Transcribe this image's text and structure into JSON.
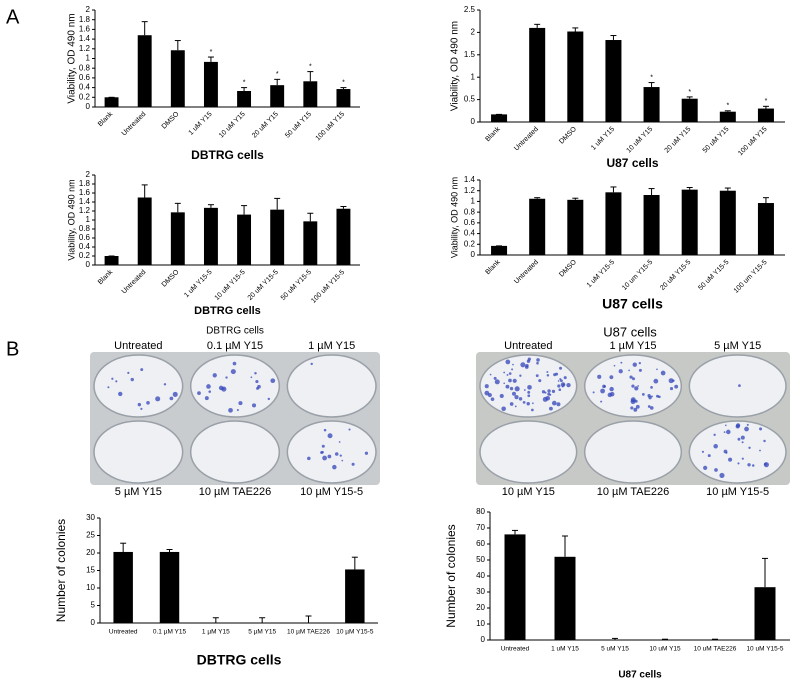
{
  "panels": [
    "A",
    "B"
  ],
  "plates": [
    {
      "title": "DBTRG cells",
      "labels": [
        "Untreated",
        "0.1 µM Y15",
        "1 µM Y15",
        "5 µM Y15",
        "10 µM TAE226",
        "10 µM Y15-5"
      ]
    },
    {
      "title": "U87 cells",
      "labels": [
        "Untreated",
        "1 µM Y15",
        "5 µM Y15",
        "10 µM Y15",
        "10 µM TAE226",
        "10 µM Y15-5"
      ]
    }
  ],
  "chart_data": [
    {
      "type": "bar",
      "xlabel": "DBTRG cells",
      "ylabel": "Viability, OD 490 nm",
      "color": "#000000",
      "categories": [
        "Blank",
        "Untreated",
        "DMSO",
        "1 uM Y15",
        "10 uM Y15",
        "20 uM Y15",
        "50 uM Y15",
        "100 uM Y15"
      ],
      "values": [
        0.2,
        1.48,
        1.17,
        0.93,
        0.33,
        0.45,
        0.53,
        0.37
      ],
      "errors": [
        0,
        0.28,
        0.2,
        0.1,
        0.07,
        0.12,
        0.2,
        0.03
      ],
      "significance": [
        null,
        null,
        null,
        "*",
        "*",
        "*",
        "*",
        "*"
      ],
      "ylim": [
        0,
        2
      ],
      "yticks": [
        0,
        0.2,
        0.4,
        0.6,
        0.8,
        1,
        1.2,
        1.4,
        1.6,
        1.8,
        2
      ]
    },
    {
      "type": "bar",
      "xlabel": "U87 cells",
      "ylabel": "Viability, OD 490 nm",
      "color": "#000000",
      "categories": [
        "Blank",
        "Untreated",
        "DMSO",
        "1 uM Y15",
        "10 uM Y15",
        "20 uM Y15",
        "50 uM Y15",
        "100 uM Y15"
      ],
      "values": [
        0.17,
        2.1,
        2.02,
        1.83,
        0.78,
        0.52,
        0.23,
        0.3
      ],
      "errors": [
        0,
        0.08,
        0.08,
        0.1,
        0.1,
        0.04,
        0.02,
        0.05
      ],
      "significance": [
        null,
        null,
        null,
        null,
        "*",
        "*",
        "*",
        "*"
      ],
      "ylim": [
        0,
        2.5
      ],
      "yticks": [
        0,
        0.5,
        1,
        1.5,
        2,
        2.5
      ]
    },
    {
      "type": "bar",
      "xlabel": "DBTRG cells",
      "ylabel": "Viability, OD 490 nm",
      "color": "#000000",
      "categories": [
        "Blank",
        "Untreated",
        "DMSO",
        "1 uM Y15-5",
        "10 uM Y15-5",
        "20 uM Y15-5",
        "50 uM Y15-5",
        "100 uM Y15-5"
      ],
      "values": [
        0.2,
        1.5,
        1.17,
        1.27,
        1.12,
        1.23,
        0.97,
        1.25
      ],
      "errors": [
        0,
        0.28,
        0.2,
        0.07,
        0.2,
        0.25,
        0.18,
        0.05
      ],
      "ylim": [
        0,
        2
      ],
      "yticks": [
        0,
        0.2,
        0.4,
        0.6,
        0.8,
        1,
        1.2,
        1.4,
        1.6,
        1.8,
        2
      ]
    },
    {
      "type": "bar",
      "xlabel": "U87 cells",
      "ylabel": "Viability, OD 490 nm",
      "color": "#000000",
      "categories": [
        "Blank",
        "Untreated",
        "DMSO",
        "1 uM Y15-5",
        "10 um Y15-5",
        "20 uM Y15-5",
        "50 uM Y15-5",
        "100 um Y15-5"
      ],
      "values": [
        0.17,
        1.05,
        1.03,
        1.17,
        1.12,
        1.22,
        1.2,
        0.97
      ],
      "errors": [
        0,
        0.02,
        0.03,
        0.1,
        0.12,
        0.04,
        0.05,
        0.1
      ],
      "ylim": [
        0,
        1.4
      ],
      "yticks": [
        0,
        0.2,
        0.4,
        0.6,
        0.8,
        1,
        1.2,
        1.4
      ]
    },
    {
      "type": "bar",
      "xlabel": "DBTRG cells",
      "ylabel": "Number of colonies",
      "color": "#000000",
      "categories": [
        "Untreated",
        "0.1 µM Y15",
        "1 µM Y15",
        "5 µM Y15",
        "10 µM TAE226",
        "10 µM Y15-5"
      ],
      "values": [
        20.3,
        20.3,
        0,
        0,
        0,
        15.3
      ],
      "errors": [
        2.5,
        0.7,
        1.5,
        1.5,
        2,
        3.5
      ],
      "ylim": [
        0,
        30
      ],
      "yticks": [
        0,
        5,
        10,
        15,
        20,
        25,
        30
      ]
    },
    {
      "type": "bar",
      "xlabel": "U87 cells",
      "ylabel": "Number of colonies",
      "color": "#000000",
      "categories": [
        "Untreated",
        "1 uM Y15",
        "5 uM Y15",
        "10 uM Y15",
        "10 uM TAE226",
        "10 uM Y15-5"
      ],
      "values": [
        66,
        52,
        0,
        0,
        0,
        33
      ],
      "errors": [
        2.5,
        13,
        1,
        0.5,
        0.5,
        18
      ],
      "ylim": [
        0,
        80
      ],
      "yticks": [
        0,
        10,
        20,
        30,
        40,
        50,
        60,
        70,
        80
      ]
    }
  ]
}
